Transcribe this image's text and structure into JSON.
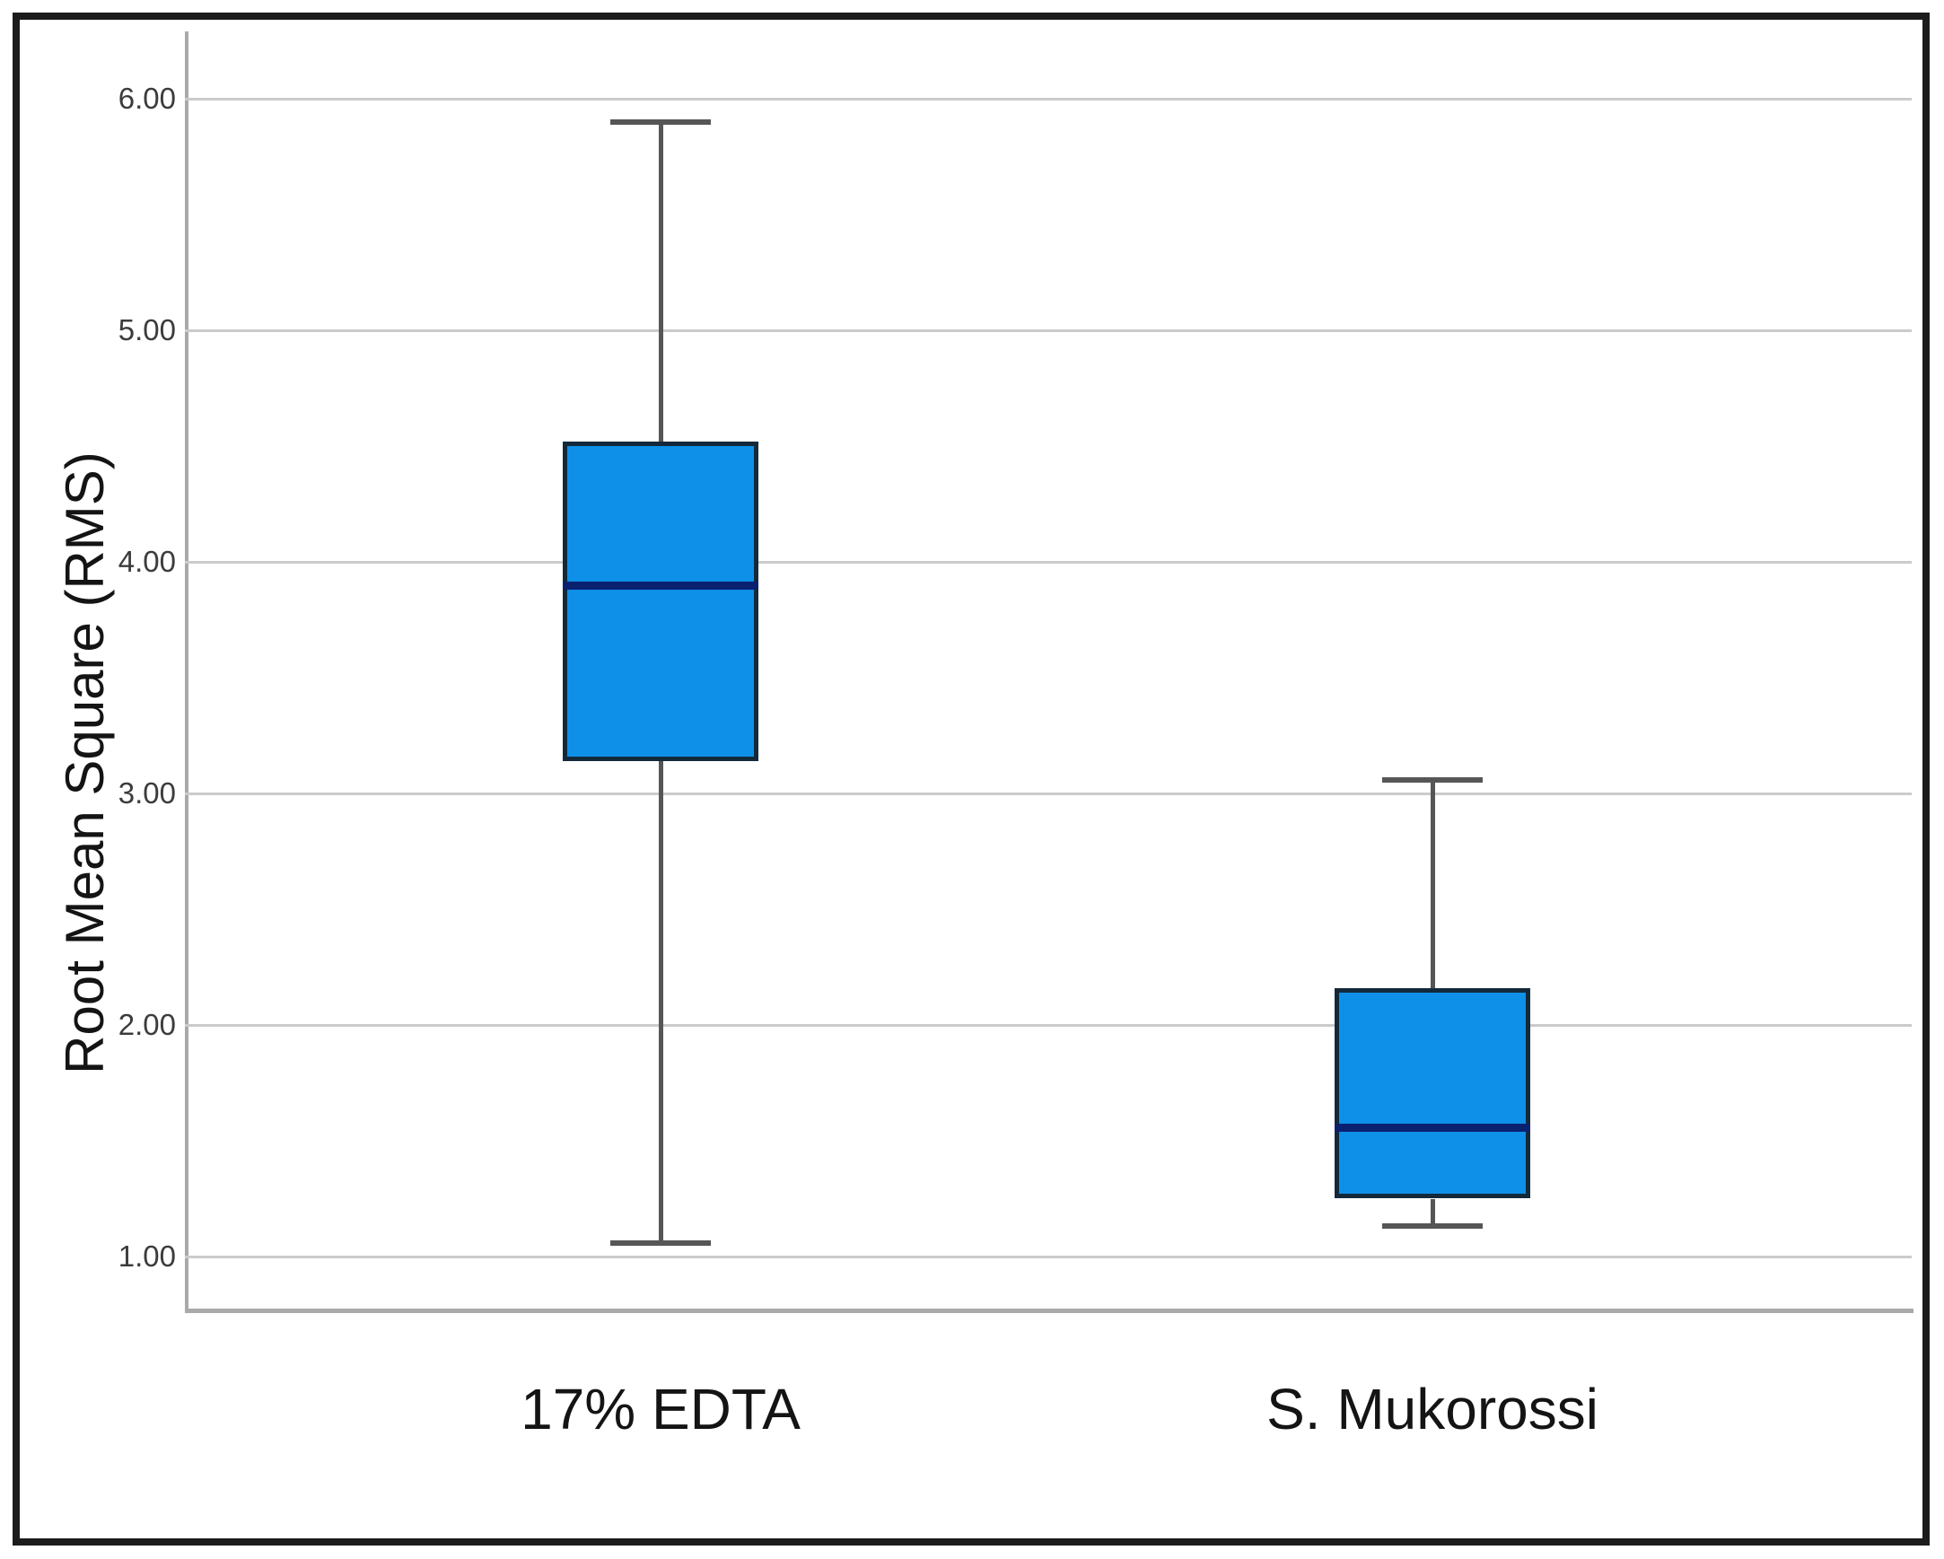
{
  "chart_data": {
    "type": "box",
    "title": "",
    "xlabel": "",
    "ylabel": "Root Mean Square (RMS)",
    "categories": [
      "17% EDTA",
      "S. Mukorossi"
    ],
    "series": [
      {
        "name": "17% EDTA",
        "min": 1.06,
        "q1": 3.14,
        "median": 3.9,
        "q3": 4.52,
        "max": 5.9
      },
      {
        "name": "S. Mukorossi",
        "min": 1.13,
        "q1": 1.25,
        "median": 1.56,
        "q3": 2.16,
        "max": 3.06
      }
    ],
    "yticks": [
      "6.00",
      "5.00",
      "4.00",
      "3.00",
      "2.00",
      "1.00"
    ],
    "ytick_values": [
      6,
      5,
      4,
      3,
      2,
      1
    ],
    "ylim": [
      0.78,
      6.29
    ],
    "grid": "horizontal",
    "legend": "none"
  },
  "colors": {
    "box_fill": "#0E90E8",
    "box_border": "#13293A",
    "median": "#0A2170",
    "whisker": "#565656",
    "gridline": "#CBCBCB",
    "axis_line": "#A9A9A9",
    "tick_text": "#3C3C3C",
    "label_text": "#141414",
    "frame": "#1C1C1C",
    "background": "#FFFFFF"
  }
}
